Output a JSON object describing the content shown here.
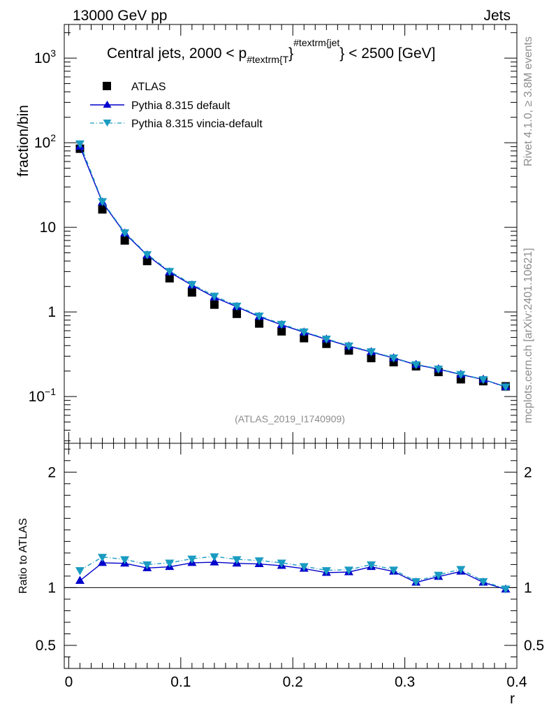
{
  "header": {
    "left": "13000 GeV pp",
    "right": "Jets"
  },
  "side_labels": {
    "rivet": "Rivet 4.1.0, ≥ 3.8M events",
    "mcplots": "mcplots.cern.ch [arXiv:2401.10621]"
  },
  "chart_data": {
    "type": "scatter",
    "title": {
      "prefix": "Central jets, 2000 < p",
      "sub": "#textrm{T",
      "close": "}",
      "sup": "#textrm{jet",
      "suffix": "} < 2500 [GeV]"
    },
    "analysis_id": "(ATLAS_2019_I1740909)",
    "xlabel": "r",
    "xlim": [
      -0.004,
      0.4
    ],
    "x_ticks": [
      "0",
      "0.1",
      "0.2",
      "0.3",
      "0.4"
    ],
    "main_panel": {
      "ylabel": "fraction/bin",
      "yscale": "log",
      "ylim": [
        0.028,
        2500
      ],
      "y_ticks": [
        {
          "value": 1000,
          "base": "10",
          "exp": "3"
        },
        {
          "value": 100,
          "base": "10",
          "exp": "2"
        },
        {
          "value": 10,
          "base": "10",
          "exp": ""
        },
        {
          "value": 1,
          "base": "1",
          "exp": ""
        },
        {
          "value": 0.1,
          "base": "10",
          "exp": "−1"
        }
      ]
    },
    "ratio_panel": {
      "ylabel": "Ratio to ATLAS",
      "ylim": [
        0.3,
        2.25
      ],
      "y_ticks": [
        "0.5",
        "1",
        "2"
      ]
    },
    "x": [
      0.01,
      0.03,
      0.05,
      0.07,
      0.09,
      0.11,
      0.13,
      0.15,
      0.17,
      0.19,
      0.21,
      0.23,
      0.25,
      0.27,
      0.29,
      0.31,
      0.33,
      0.35,
      0.37,
      0.39
    ],
    "series": [
      {
        "name": "ATLAS",
        "style": "data",
        "color": "#000000",
        "values": [
          85,
          16.3,
          7.0,
          4.0,
          2.5,
          1.7,
          1.22,
          0.95,
          0.73,
          0.59,
          0.49,
          0.42,
          0.35,
          0.285,
          0.255,
          0.228,
          0.195,
          0.16,
          0.152,
          0.132
        ],
        "ratio": [
          1,
          1,
          1,
          1,
          1,
          1,
          1,
          1,
          1,
          1,
          1,
          1,
          1,
          1,
          1,
          1,
          1,
          1,
          1,
          1
        ]
      },
      {
        "name": "Pythia 8.315 default",
        "style": "solid",
        "color": "#0000cc",
        "values": [
          90,
          19.8,
          8.5,
          4.68,
          2.95,
          2.07,
          1.49,
          1.15,
          0.88,
          0.703,
          0.575,
          0.474,
          0.393,
          0.336,
          0.285,
          0.238,
          0.211,
          0.182,
          0.159,
          0.13
        ],
        "ratio": [
          1.06,
          1.215,
          1.21,
          1.17,
          1.18,
          1.215,
          1.22,
          1.21,
          1.205,
          1.19,
          1.165,
          1.13,
          1.135,
          1.18,
          1.14,
          1.045,
          1.095,
          1.14,
          1.045,
          0.985
        ]
      },
      {
        "name": "Pythia 8.315 vincia-default",
        "style": "dashdot",
        "color": "#1a9bc1",
        "values": [
          98,
          20.3,
          8.7,
          4.79,
          3.04,
          2.13,
          1.55,
          1.18,
          0.9,
          0.72,
          0.585,
          0.482,
          0.399,
          0.341,
          0.288,
          0.24,
          0.213,
          0.184,
          0.16,
          0.131
        ],
        "ratio": [
          1.15,
          1.265,
          1.245,
          1.2,
          1.215,
          1.25,
          1.27,
          1.245,
          1.235,
          1.215,
          1.185,
          1.15,
          1.155,
          1.2,
          1.155,
          1.055,
          1.11,
          1.16,
          1.055,
          0.99
        ]
      }
    ]
  }
}
